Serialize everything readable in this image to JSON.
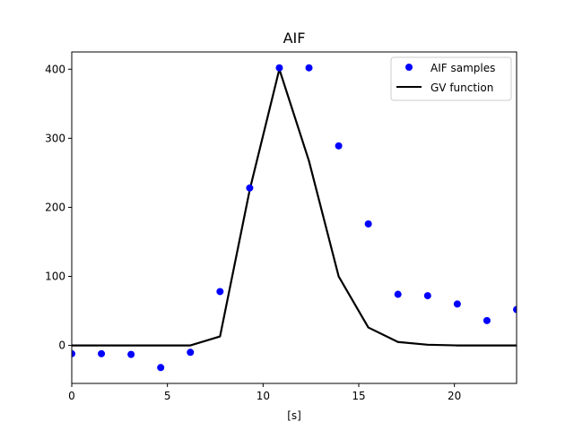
{
  "chart_data": {
    "type": "line",
    "title": "AIF",
    "xlabel": "[s]",
    "ylabel": "",
    "xlim": [
      0,
      23.25
    ],
    "ylim": [
      -55,
      425
    ],
    "x_ticks": [
      "0",
      "5",
      "10",
      "15",
      "20"
    ],
    "y_ticks": [
      "0",
      "100",
      "200",
      "300",
      "400"
    ],
    "grid": false,
    "legend_position": "top-right",
    "series": [
      {
        "name": "AIF samples",
        "style": "markers",
        "color": "#0000ff",
        "x": [
          0,
          1.55,
          3.1,
          4.65,
          6.2,
          7.75,
          9.3,
          10.85,
          12.4,
          13.95,
          15.5,
          17.05,
          18.6,
          20.15,
          21.7,
          23.25
        ],
        "y": [
          -12,
          -12,
          -13,
          -32,
          -10,
          78,
          228,
          402,
          402,
          289,
          176,
          74,
          72,
          60,
          36,
          52
        ]
      },
      {
        "name": "GV function",
        "style": "line",
        "color": "#000000",
        "x": [
          0,
          1.55,
          3.1,
          4.65,
          6.2,
          7.75,
          9.3,
          10.85,
          12.4,
          13.95,
          15.5,
          17.05,
          18.6,
          20.15,
          21.7,
          23.25
        ],
        "y": [
          0,
          0,
          0,
          0,
          0,
          13,
          225,
          400,
          267,
          100,
          26,
          5,
          1,
          0,
          0,
          0
        ]
      }
    ]
  }
}
